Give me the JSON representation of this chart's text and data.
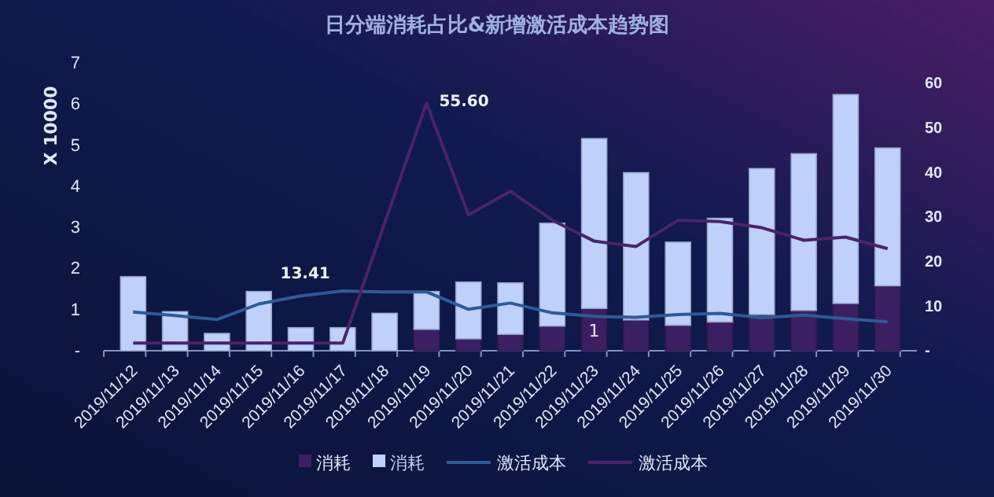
{
  "chart_data": {
    "type": "bar",
    "title": "日分端消耗占比&新增激活成本趋势图",
    "ylabel": "X 10000",
    "stacked": true,
    "legend": "bottom",
    "grid": false,
    "categories": [
      "2019/11/12",
      "2019/11/13",
      "2019/11/14",
      "2019/11/15",
      "2019/11/16",
      "2019/11/17",
      "2019/11/18",
      "2019/11/19",
      "2019/11/20",
      "2019/11/21",
      "2019/11/22",
      "2019/11/23",
      "2019/11/24",
      "2019/11/25",
      "2019/11/26",
      "2019/11/27",
      "2019/11/28",
      "2019/11/29",
      "2019/11/30"
    ],
    "series": [
      {
        "name": "消耗",
        "color": "#3b1f62",
        "values": [
          0,
          0,
          0,
          0,
          0,
          0,
          0,
          0.52,
          0.29,
          0.4,
          0.6,
          1.03,
          0.75,
          0.62,
          0.7,
          0.88,
          0.98,
          1.15,
          1.58
        ]
      },
      {
        "name": "消耗",
        "color": "#bfd0fb",
        "values": [
          1.8,
          0.95,
          0.42,
          1.44,
          0.56,
          0.56,
          0.91,
          0.92,
          1.38,
          1.25,
          2.5,
          4.13,
          3.58,
          2.02,
          2.52,
          3.55,
          3.81,
          5.08,
          3.35
        ]
      },
      {
        "name": "激活成本",
        "type": "line",
        "axis": "y2",
        "color": "#2e5a96",
        "values": [
          8.7,
          7.9,
          7.0,
          10.5,
          12.3,
          13.41,
          13.2,
          13.2,
          9.3,
          10.7,
          8.5,
          7.7,
          7.5,
          8.1,
          8.4,
          7.4,
          8.0,
          7.2,
          6.5
        ],
        "value_labels": [
          null,
          null,
          null,
          null,
          null,
          "13.41",
          null,
          null,
          null,
          null,
          null,
          null,
          null,
          null,
          null,
          null,
          null,
          null,
          null
        ]
      },
      {
        "name": "激活成本",
        "type": "line",
        "axis": "y2",
        "color": "#4a2368",
        "values": [
          1.7,
          1.7,
          1.7,
          1.7,
          1.7,
          1.7,
          28.6,
          55.6,
          30.5,
          35.8,
          29.3,
          24.6,
          23.4,
          29.3,
          29.0,
          27.6,
          24.8,
          25.5,
          22.9
        ],
        "value_labels": [
          null,
          null,
          null,
          null,
          null,
          null,
          null,
          "55.60",
          null,
          null,
          null,
          null,
          null,
          null,
          null,
          null,
          null,
          null,
          null
        ]
      }
    ],
    "ylim": [
      0,
      7
    ],
    "yticks": [
      {
        "value": 0,
        "label": "-"
      },
      1,
      2,
      3,
      4,
      5,
      6,
      7
    ],
    "y2lim": [
      0,
      60
    ],
    "y2ticks": [
      {
        "value": 0,
        "label": "-"
      },
      10,
      20,
      30,
      40,
      50,
      60
    ],
    "annotations": [
      {
        "text": "1",
        "x": "2019/11/23",
        "y": 0.5
      }
    ]
  }
}
